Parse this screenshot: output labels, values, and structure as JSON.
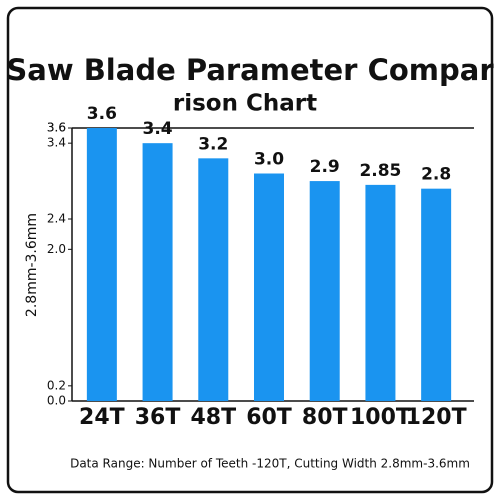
{
  "chart_data": {
    "type": "bar",
    "title": [
      "Saw Blade Parameter Compar",
      "rison Chart"
    ],
    "y_label": "2.8mm-3.6mm",
    "categories": [
      "24T",
      "36T",
      "48T",
      "60T",
      "80T",
      "100T",
      "120T"
    ],
    "values": [
      3.6,
      3.4,
      3.2,
      3.0,
      2.9,
      2.85,
      2.8
    ],
    "value_labels": [
      "3.6",
      "3.4",
      "3.2",
      "3.0",
      "2.9",
      "2.85",
      "2.8"
    ],
    "color": "#1a94f0",
    "ylim": [
      0,
      3.6
    ],
    "yticks": [
      {
        "value": 0,
        "label": "0.0"
      },
      0.2,
      {
        "value": 2,
        "label": "2.0"
      },
      2.4,
      3.4,
      3.6,
      3.6
    ],
    "note": "Data Range: Number of Teeth -120T,  Cutting Width 2.8mm-3.6mm"
  }
}
